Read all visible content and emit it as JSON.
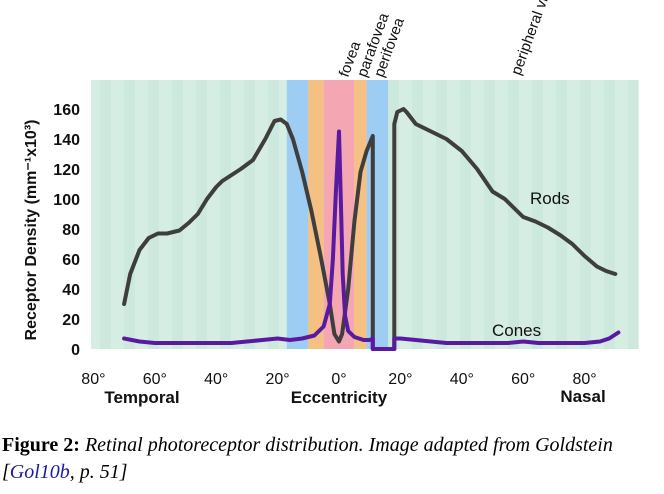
{
  "chart_data": {
    "type": "line",
    "ylabel": "Receptor Density (mm⁻¹x10³)",
    "xlabel": "Eccentricity",
    "x_side_labels": {
      "left": "Temporal",
      "right": "Nasal"
    },
    "xlim": [
      -82,
      92
    ],
    "ylim": [
      0,
      170
    ],
    "x_ticks": [
      -80,
      -60,
      -40,
      -20,
      0,
      20,
      40,
      60,
      80
    ],
    "x_tick_labels": [
      "80°",
      "60°",
      "40°",
      "20°",
      "0°",
      "20°",
      "40°",
      "60°",
      "80°"
    ],
    "y_ticks": [
      0,
      20,
      40,
      60,
      80,
      100,
      120,
      140,
      160
    ],
    "y_tick_labels": [
      "0",
      "20",
      "40",
      "60",
      "80",
      "100",
      "120",
      "140",
      "160"
    ],
    "grid": false,
    "blind_spot": [
      11,
      18
    ],
    "regions": [
      {
        "name": "perifovea",
        "from": -17,
        "to": -10,
        "color": "#9dcdf2"
      },
      {
        "name": "parafovea",
        "from": -10,
        "to": -5,
        "color": "#f5c183"
      },
      {
        "name": "fovea",
        "from": -5,
        "to": 5,
        "color": "#f4a7b3"
      },
      {
        "name": "parafovea",
        "from": 5,
        "to": 9,
        "color": "#f5c183"
      },
      {
        "name": "perifovea",
        "from": 9,
        "to": 16,
        "color": "#9dcdf2"
      }
    ],
    "region_labels": [
      "fovea",
      "parafovea",
      "perifovea",
      "peripheral vision"
    ],
    "series": [
      {
        "name": "Rods",
        "color": "#3e3e3e",
        "x": [
          -70,
          -68,
          -65,
          -62,
          -59,
          -56,
          -52,
          -49,
          -46,
          -43,
          -40,
          -38,
          -35,
          -32,
          -28,
          -24,
          -21,
          -19,
          -17,
          -15,
          -12,
          -9,
          -6,
          -3,
          -1.5,
          0,
          1,
          3,
          5,
          7,
          9,
          11,
          11,
          18,
          18,
          19,
          21,
          22,
          25,
          30,
          35,
          40,
          45,
          50,
          54,
          57,
          60,
          64,
          68,
          72,
          76,
          80,
          84,
          87,
          90
        ],
        "y": [
          30,
          50,
          66,
          74,
          77,
          77,
          79,
          84,
          90,
          100,
          108,
          112,
          116,
          120,
          126,
          140,
          152,
          153,
          150,
          140,
          118,
          92,
          62,
          30,
          10,
          5,
          10,
          40,
          85,
          118,
          132,
          142,
          0,
          0,
          150,
          158,
          160,
          158,
          150,
          145,
          140,
          132,
          120,
          105,
          100,
          94,
          88,
          85,
          81,
          76,
          70,
          62,
          55,
          52,
          50
        ]
      },
      {
        "name": "Cones",
        "color": "#5a1aa0",
        "x": [
          -70,
          -65,
          -60,
          -55,
          -50,
          -45,
          -40,
          -35,
          -30,
          -25,
          -20,
          -16,
          -12,
          -8,
          -5,
          -3,
          -2,
          -1,
          0,
          0.6,
          1.2,
          2,
          3,
          5,
          8,
          10,
          11,
          11,
          18,
          18,
          20,
          25,
          30,
          35,
          40,
          45,
          50,
          55,
          60,
          65,
          70,
          75,
          80,
          85,
          88,
          91
        ],
        "y": [
          7,
          5,
          4,
          4,
          4,
          4,
          4,
          4,
          5,
          6,
          7,
          6,
          7,
          9,
          15,
          30,
          60,
          105,
          145,
          100,
          50,
          22,
          12,
          8,
          6,
          6,
          7,
          0,
          0,
          7,
          7,
          6,
          5,
          4,
          4,
          4,
          4,
          4,
          5,
          4,
          4,
          4,
          4,
          5,
          7,
          11
        ]
      }
    ]
  },
  "caption": {
    "figure_label": "Figure 2:",
    "text": "Retinal photoreceptor distribution. Image adapted from Goldstein [",
    "citation": "Gol10b",
    "page_ref": ", p. 51]"
  },
  "colors": {
    "plot_background": "#d5ede3",
    "plot_stripe": "#c7e6da"
  }
}
